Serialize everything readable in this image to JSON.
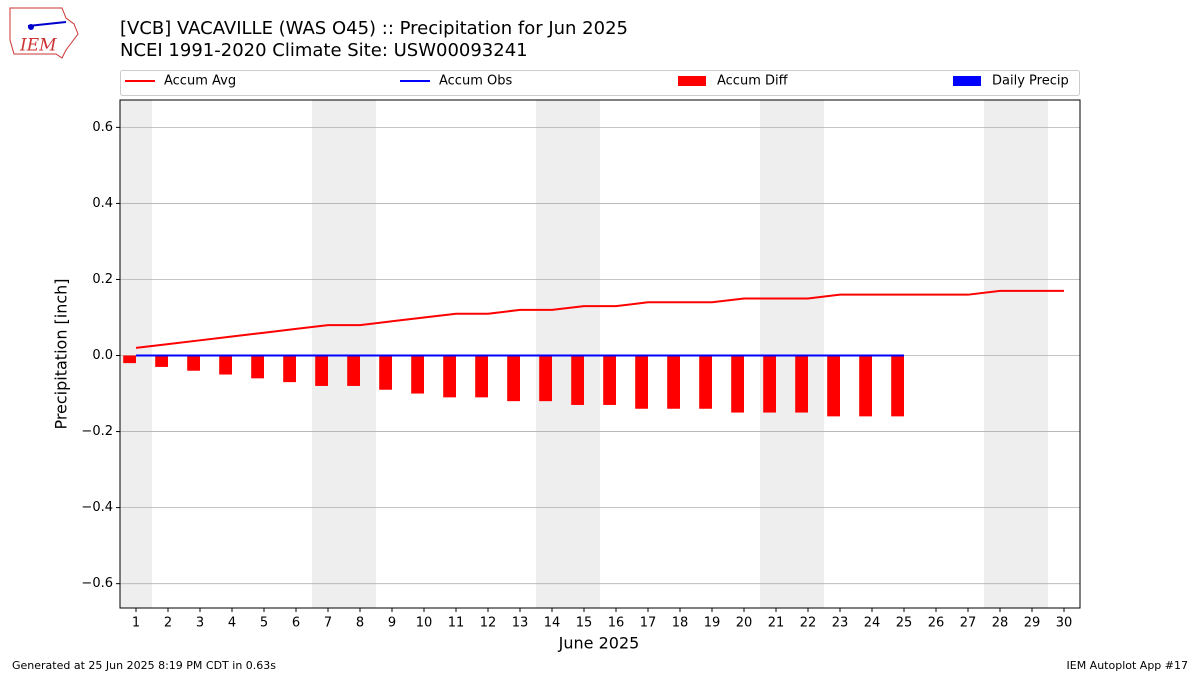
{
  "logo_text": "IEM",
  "footer": {
    "left": "Generated at 25 Jun 2025 8:19 PM CDT in 0.63s",
    "right": "IEM Autoplot App #17"
  },
  "chart_data": {
    "type": "bar",
    "title": "[VCB] VACAVILLE (WAS O45) :: Precipitation for Jun 2025",
    "subtitle": "NCEI 1991-2020 Climate Site: USW00093241",
    "xlabel": "June 2025",
    "ylabel": "Precipitation [inch]",
    "x": [
      1,
      2,
      3,
      4,
      5,
      6,
      7,
      8,
      9,
      10,
      11,
      12,
      13,
      14,
      15,
      16,
      17,
      18,
      19,
      20,
      21,
      22,
      23,
      24,
      25,
      26,
      27,
      28,
      29,
      30
    ],
    "xlim": [
      0.5,
      30.5
    ],
    "xticks": [
      1,
      2,
      3,
      4,
      5,
      6,
      7,
      8,
      9,
      10,
      11,
      12,
      13,
      14,
      15,
      16,
      17,
      18,
      19,
      20,
      21,
      22,
      23,
      24,
      25,
      26,
      27,
      28,
      29,
      30
    ],
    "ylim": [
      -0.664,
      0.672
    ],
    "yticks": [
      {
        "value": -0.6,
        "label": "−0.6"
      },
      {
        "value": -0.4,
        "label": "−0.4"
      },
      {
        "value": -0.2,
        "label": "−0.2"
      },
      {
        "value": 0,
        "label": "0.0"
      },
      0.2,
      0.4,
      0.6
    ],
    "grid": true,
    "shaded_spans": [
      [
        0.5,
        1.5
      ],
      [
        6.5,
        8.5
      ],
      [
        13.5,
        15.5
      ],
      [
        20.5,
        22.5
      ],
      [
        27.5,
        29.5
      ]
    ],
    "series": [
      {
        "name": "Accum Avg",
        "type": "line",
        "color": "#ff0000",
        "values": [
          0.02,
          0.03,
          0.04,
          0.05,
          0.06,
          0.07,
          0.08,
          0.08,
          0.09,
          0.1,
          0.11,
          0.11,
          0.12,
          0.12,
          0.13,
          0.13,
          0.14,
          0.14,
          0.14,
          0.15,
          0.15,
          0.15,
          0.16,
          0.16,
          0.16,
          0.16,
          0.16,
          0.17,
          0.17,
          0.17
        ]
      },
      {
        "name": "Accum Obs",
        "type": "line",
        "color": "#0000ff",
        "values": [
          0,
          0,
          0,
          0,
          0,
          0,
          0,
          0,
          0,
          0,
          0,
          0,
          0,
          0,
          0,
          0,
          0,
          0,
          0,
          0,
          0,
          0,
          0,
          0,
          0,
          null,
          null,
          null,
          null,
          null
        ]
      },
      {
        "name": "Accum Diff",
        "type": "bar",
        "color": "#ff0000",
        "values": [
          -0.02,
          -0.03,
          -0.04,
          -0.05,
          -0.06,
          -0.07,
          -0.08,
          -0.08,
          -0.09,
          -0.1,
          -0.11,
          -0.11,
          -0.12,
          -0.12,
          -0.13,
          -0.13,
          -0.14,
          -0.14,
          -0.14,
          -0.15,
          -0.15,
          -0.15,
          -0.16,
          -0.16,
          -0.16,
          null,
          null,
          null,
          null,
          null
        ]
      },
      {
        "name": "Daily Precip",
        "type": "bar",
        "color": "#0000ff",
        "values": [
          0,
          0,
          0,
          0,
          0,
          0,
          0,
          0,
          0,
          0,
          0,
          0,
          0,
          0,
          0,
          0,
          0,
          0,
          0,
          0,
          0,
          0,
          0,
          0,
          0,
          null,
          null,
          null,
          null,
          null
        ]
      }
    ]
  }
}
